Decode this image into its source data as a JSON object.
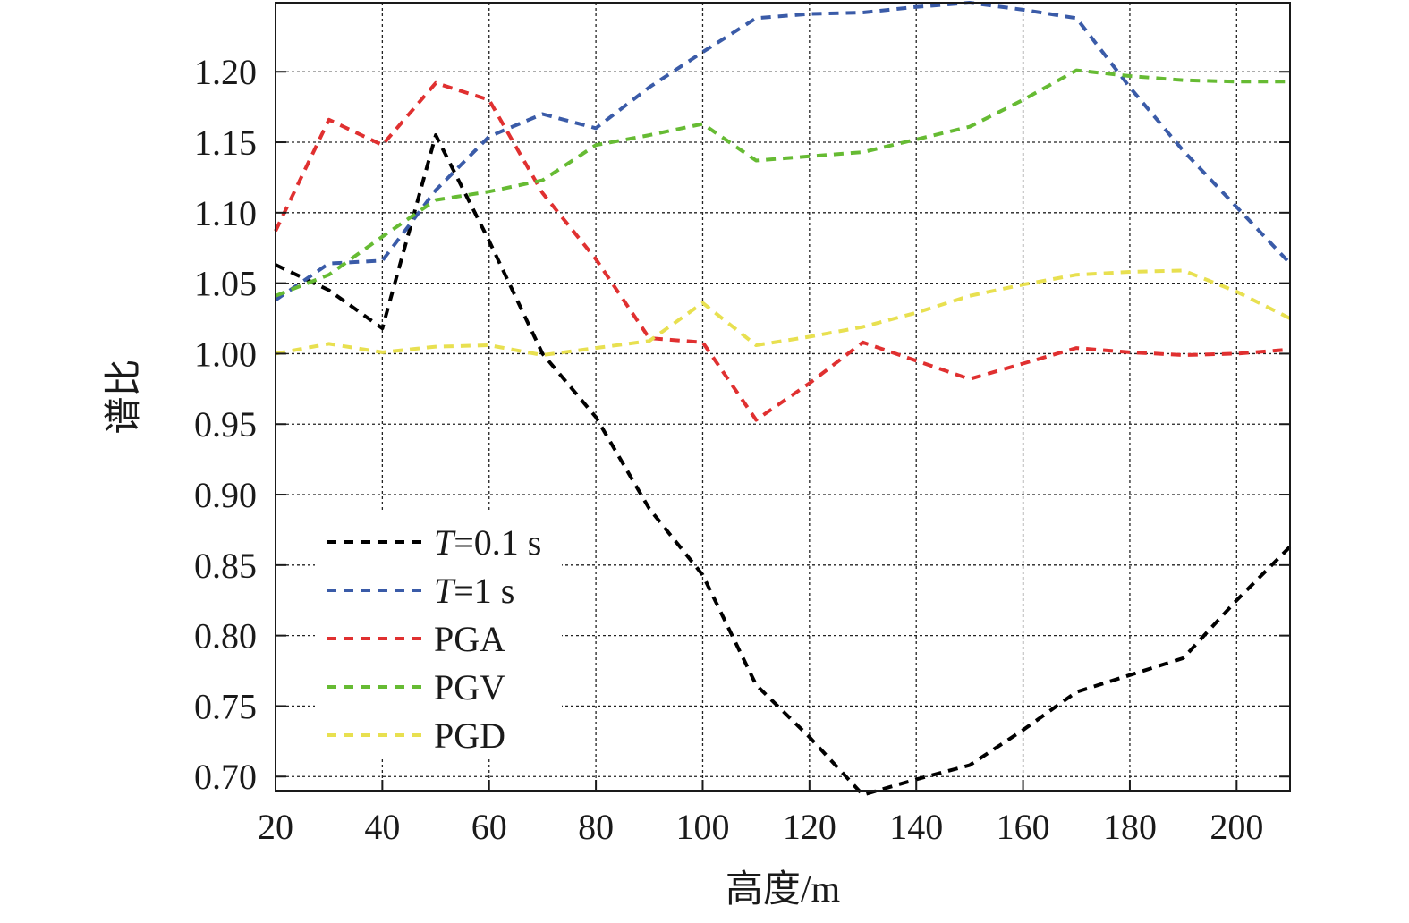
{
  "chart_data": {
    "type": "line",
    "xlabel": "高度/m",
    "ylabel": "谱比",
    "xlim": [
      20,
      210
    ],
    "ylim": [
      0.69,
      1.249
    ],
    "xticks": [
      20,
      40,
      60,
      80,
      100,
      120,
      140,
      160,
      180,
      200
    ],
    "xtick_labels": [
      "20",
      "40",
      "60",
      "80",
      "100",
      "120",
      "140",
      "160",
      "180",
      "200"
    ],
    "yticks": [
      0.7,
      0.75,
      0.8,
      0.85,
      0.9,
      0.95,
      1.0,
      1.05,
      1.1,
      1.15,
      1.2
    ],
    "ytick_labels": [
      "0.70",
      "0.75",
      "0.80",
      "0.85",
      "0.90",
      "0.95",
      "1.00",
      "1.05",
      "1.10",
      "1.15",
      "1.20"
    ],
    "grid": true,
    "legend_position": "lower-left",
    "x": [
      20,
      30,
      40,
      50,
      60,
      70,
      80,
      90,
      100,
      110,
      120,
      130,
      140,
      150,
      160,
      170,
      180,
      190,
      200,
      210
    ],
    "series": [
      {
        "name": "=0.1 s",
        "label_prefix": "T",
        "color": "#000000",
        "values": [
          1.063,
          1.045,
          1.018,
          1.155,
          1.08,
          1.0,
          0.955,
          0.89,
          0.843,
          0.765,
          0.728,
          0.687,
          0.698,
          0.708,
          0.733,
          0.76,
          0.772,
          0.784,
          0.825,
          0.863
        ]
      },
      {
        "name": "=1 s",
        "label_prefix": "T",
        "color": "#3a5ba8",
        "values": [
          1.038,
          1.064,
          1.066,
          1.116,
          1.154,
          1.17,
          1.16,
          1.189,
          1.214,
          1.238,
          1.241,
          1.242,
          1.246,
          1.249,
          1.244,
          1.238,
          1.189,
          1.144,
          1.104,
          1.064
        ]
      },
      {
        "name": "PGA",
        "label_prefix": "",
        "color": "#e03030",
        "values": [
          1.087,
          1.166,
          1.148,
          1.192,
          1.18,
          1.114,
          1.067,
          1.011,
          1.008,
          0.953,
          0.979,
          1.008,
          0.995,
          0.982,
          0.993,
          1.004,
          1.001,
          0.999,
          1.0,
          1.003
        ]
      },
      {
        "name": "PGV",
        "label_prefix": "",
        "color": "#66bb33",
        "values": [
          1.041,
          1.056,
          1.083,
          1.109,
          1.115,
          1.123,
          1.148,
          1.155,
          1.163,
          1.137,
          1.14,
          1.143,
          1.152,
          1.161,
          1.18,
          1.201,
          1.197,
          1.194,
          1.193,
          1.193
        ]
      },
      {
        "name": "PGD",
        "label_prefix": "",
        "color": "#e8e050",
        "values": [
          1.0,
          1.007,
          1.001,
          1.005,
          1.006,
          0.999,
          1.004,
          1.009,
          1.036,
          1.006,
          1.012,
          1.019,
          1.029,
          1.041,
          1.049,
          1.056,
          1.058,
          1.059,
          1.044,
          1.025
        ]
      }
    ]
  }
}
